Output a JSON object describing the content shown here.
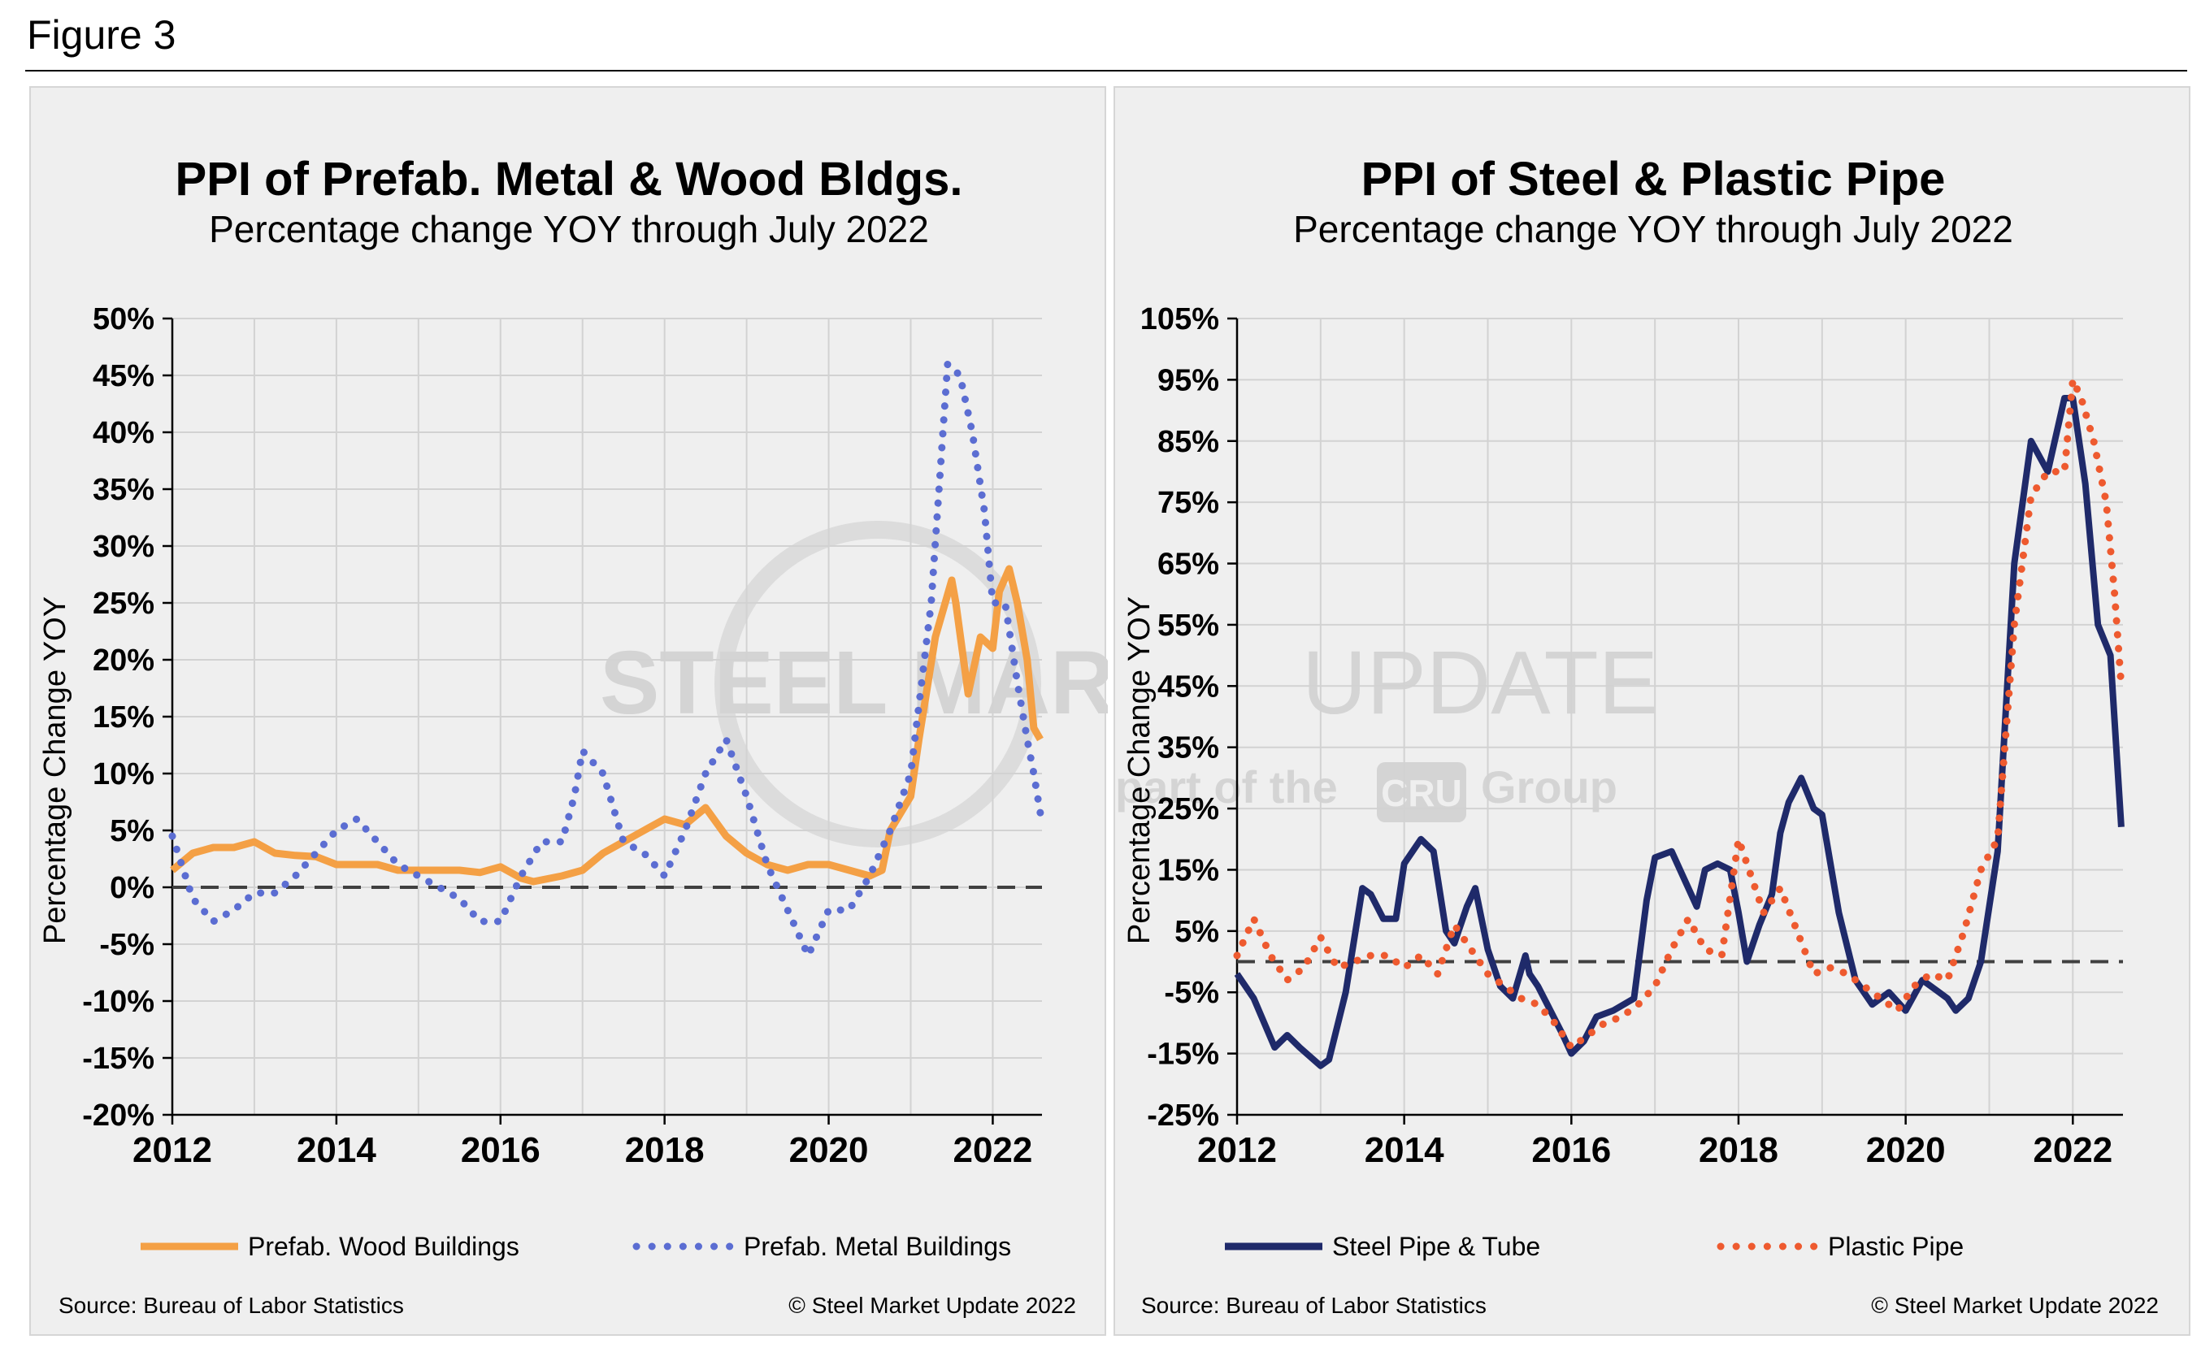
{
  "figure_label": "Figure 3",
  "watermark": {
    "line1_bold": "STEEL MARKET",
    "line1_light": "UPDATE",
    "line2_a": "part of the",
    "line2_logo": "CRU",
    "line2_b": "Group"
  },
  "chart_data": [
    {
      "id": "left",
      "type": "line",
      "title": "PPI of Prefab. Metal & Wood Bldgs.",
      "subtitle": "Percentage change YOY through July 2022",
      "ylabel": "Percentage Change YOY",
      "xlabel": "",
      "ylim": [
        -20,
        50
      ],
      "ytick_step": 5,
      "yticks": [
        "-20%",
        "-15%",
        "-10%",
        "-5%",
        "0%",
        "5%",
        "10%",
        "15%",
        "20%",
        "25%",
        "30%",
        "35%",
        "40%",
        "45%",
        "50%"
      ],
      "xlim": [
        2012,
        2022.6
      ],
      "xticks": [
        "2012",
        "2014",
        "2016",
        "2018",
        "2020",
        "2022"
      ],
      "grid": true,
      "legend_position": "bottom",
      "source": "Source: Bureau of Labor Statistics",
      "copyright": "© Steel Market Update 2022",
      "series": [
        {
          "name": "Prefab. Wood Buildings",
          "style": "solid",
          "color": "#f4a045",
          "x": [
            2012.0,
            2012.25,
            2012.5,
            2012.75,
            2013.0,
            2013.25,
            2013.5,
            2013.75,
            2014.0,
            2014.25,
            2014.5,
            2014.75,
            2015.0,
            2015.25,
            2015.5,
            2015.75,
            2016.0,
            2016.25,
            2016.4,
            2016.75,
            2017.0,
            2017.25,
            2017.5,
            2017.75,
            2018.0,
            2018.25,
            2018.5,
            2018.75,
            2019.0,
            2019.25,
            2019.5,
            2019.75,
            2020.0,
            2020.25,
            2020.5,
            2020.65,
            2020.75,
            2021.0,
            2021.1,
            2021.3,
            2021.5,
            2021.55,
            2021.7,
            2021.85,
            2022.0,
            2022.08,
            2022.2,
            2022.3,
            2022.42,
            2022.5,
            2022.58
          ],
          "y": [
            1.5,
            3,
            3.5,
            3.5,
            4,
            3,
            2.8,
            2.7,
            2,
            2,
            2,
            1.5,
            1.5,
            1.5,
            1.5,
            1.3,
            1.8,
            0.8,
            0.5,
            1,
            1.5,
            3,
            4,
            5,
            6,
            5.5,
            7,
            4.5,
            3,
            2,
            1.5,
            2,
            2,
            1.5,
            1,
            1.5,
            5,
            8,
            13,
            22,
            27,
            25,
            17,
            22,
            21,
            26,
            28,
            25,
            20,
            14,
            13
          ]
        },
        {
          "name": "Prefab. Metal Buildings",
          "style": "dotted",
          "color": "#5b6dd2",
          "x": [
            2012.0,
            2012.25,
            2012.5,
            2012.75,
            2013.0,
            2013.25,
            2013.5,
            2013.75,
            2014.0,
            2014.25,
            2014.5,
            2014.75,
            2015.0,
            2015.25,
            2015.5,
            2015.75,
            2016.0,
            2016.25,
            2016.5,
            2016.75,
            2016.9,
            2017.0,
            2017.25,
            2017.5,
            2017.75,
            2018.0,
            2018.25,
            2018.5,
            2018.75,
            2019.0,
            2019.25,
            2019.5,
            2019.75,
            2020.0,
            2020.25,
            2020.5,
            2020.75,
            2021.0,
            2021.25,
            2021.45,
            2021.6,
            2021.75,
            2021.9,
            2022.0,
            2022.15,
            2022.3,
            2022.42,
            2022.5,
            2022.58
          ],
          "y": [
            4.5,
            -1,
            -3,
            -2,
            -0.5,
            -0.5,
            1,
            3,
            5,
            6,
            4,
            2,
            1,
            0,
            -1,
            -3,
            -3,
            1,
            4,
            4,
            8,
            12,
            10,
            4,
            3,
            1,
            5,
            10,
            13,
            8,
            2,
            -2,
            -6,
            -2,
            -2,
            1,
            5,
            10,
            25,
            46,
            45,
            40,
            33,
            25,
            25,
            18,
            13,
            10,
            6.5
          ]
        }
      ]
    },
    {
      "id": "right",
      "type": "line",
      "title": "PPI of Steel & Plastic Pipe",
      "subtitle": "Percentage change YOY through July 2022",
      "ylabel": "Percentage Change YOY",
      "xlabel": "",
      "ylim": [
        -25,
        105
      ],
      "ytick_step": 10,
      "yticks": [
        "-25%",
        "-15%",
        "-5%",
        "5%",
        "15%",
        "25%",
        "35%",
        "45%",
        "55%",
        "65%",
        "75%",
        "85%",
        "95%",
        "105%"
      ],
      "xlim": [
        2012,
        2022.6
      ],
      "xticks": [
        "2012",
        "2014",
        "2016",
        "2018",
        "2020",
        "2022"
      ],
      "grid": true,
      "legend_position": "bottom",
      "source": "Source: Bureau of Labor Statistics",
      "copyright": "© Steel Market Update 2022",
      "series": [
        {
          "name": "Steel Pipe & Tube",
          "style": "solid",
          "color": "#1f2a6a",
          "x": [
            2012.0,
            2012.2,
            2012.45,
            2012.6,
            2012.75,
            2013.0,
            2013.1,
            2013.3,
            2013.5,
            2013.6,
            2013.75,
            2013.9,
            2014.0,
            2014.2,
            2014.35,
            2014.5,
            2014.6,
            2014.75,
            2014.85,
            2015.0,
            2015.15,
            2015.3,
            2015.45,
            2015.5,
            2015.6,
            2015.75,
            2015.9,
            2016.0,
            2016.15,
            2016.3,
            2016.5,
            2016.75,
            2016.9,
            2017.0,
            2017.2,
            2017.5,
            2017.6,
            2017.75,
            2017.9,
            2018.0,
            2018.1,
            2018.25,
            2018.4,
            2018.5,
            2018.6,
            2018.75,
            2018.9,
            2019.0,
            2019.2,
            2019.4,
            2019.6,
            2019.8,
            2020.0,
            2020.2,
            2020.4,
            2020.5,
            2020.6,
            2020.75,
            2020.9,
            2021.1,
            2021.3,
            2021.5,
            2021.7,
            2021.9,
            2022.0,
            2022.15,
            2022.3,
            2022.45,
            2022.58
          ],
          "y": [
            -2,
            -6,
            -14,
            -12,
            -14,
            -17,
            -16,
            -5,
            12,
            11,
            7,
            7,
            16,
            20,
            18,
            5,
            3,
            9,
            12,
            2,
            -4,
            -6,
            1,
            -2,
            -4,
            -8,
            -12,
            -15,
            -13,
            -9,
            -8,
            -6,
            10,
            17,
            18,
            9,
            15,
            16,
            15,
            8,
            0,
            6,
            11,
            21,
            26,
            30,
            25,
            24,
            8,
            -3,
            -7,
            -5,
            -8,
            -3,
            -5,
            -6,
            -8,
            -6,
            0,
            18,
            65,
            85,
            80,
            92,
            92,
            78,
            55,
            50,
            22
          ]
        },
        {
          "name": "Plastic Pipe",
          "style": "dotted",
          "color": "#ee5a2f",
          "x": [
            2012.0,
            2012.2,
            2012.4,
            2012.6,
            2012.8,
            2013.0,
            2013.2,
            2013.4,
            2013.6,
            2013.8,
            2014.0,
            2014.2,
            2014.4,
            2014.6,
            2014.8,
            2015.0,
            2015.2,
            2015.4,
            2015.6,
            2015.8,
            2016.0,
            2016.2,
            2016.4,
            2016.6,
            2016.8,
            2017.0,
            2017.2,
            2017.4,
            2017.6,
            2017.8,
            2018.0,
            2018.1,
            2018.3,
            2018.5,
            2018.7,
            2018.9,
            2019.1,
            2019.3,
            2019.5,
            2019.7,
            2019.9,
            2020.1,
            2020.3,
            2020.5,
            2020.7,
            2020.9,
            2021.1,
            2021.3,
            2021.5,
            2021.7,
            2021.9,
            2022.0,
            2022.1,
            2022.25,
            2022.4,
            2022.5,
            2022.58
          ],
          "y": [
            1,
            7,
            1,
            -3,
            -1,
            4,
            -1,
            0,
            1,
            1,
            -1,
            1,
            -2,
            6,
            2,
            -2,
            -4,
            -6,
            -7,
            -10,
            -14,
            -12,
            -10,
            -9,
            -7,
            -4,
            2,
            7,
            2,
            1,
            20,
            16,
            8,
            12,
            5,
            -2,
            -1,
            -2,
            -4,
            -6,
            -8,
            -4,
            -2,
            -3,
            5,
            15,
            20,
            55,
            76,
            80,
            80,
            95,
            92,
            85,
            75,
            60,
            45
          ]
        }
      ]
    }
  ]
}
